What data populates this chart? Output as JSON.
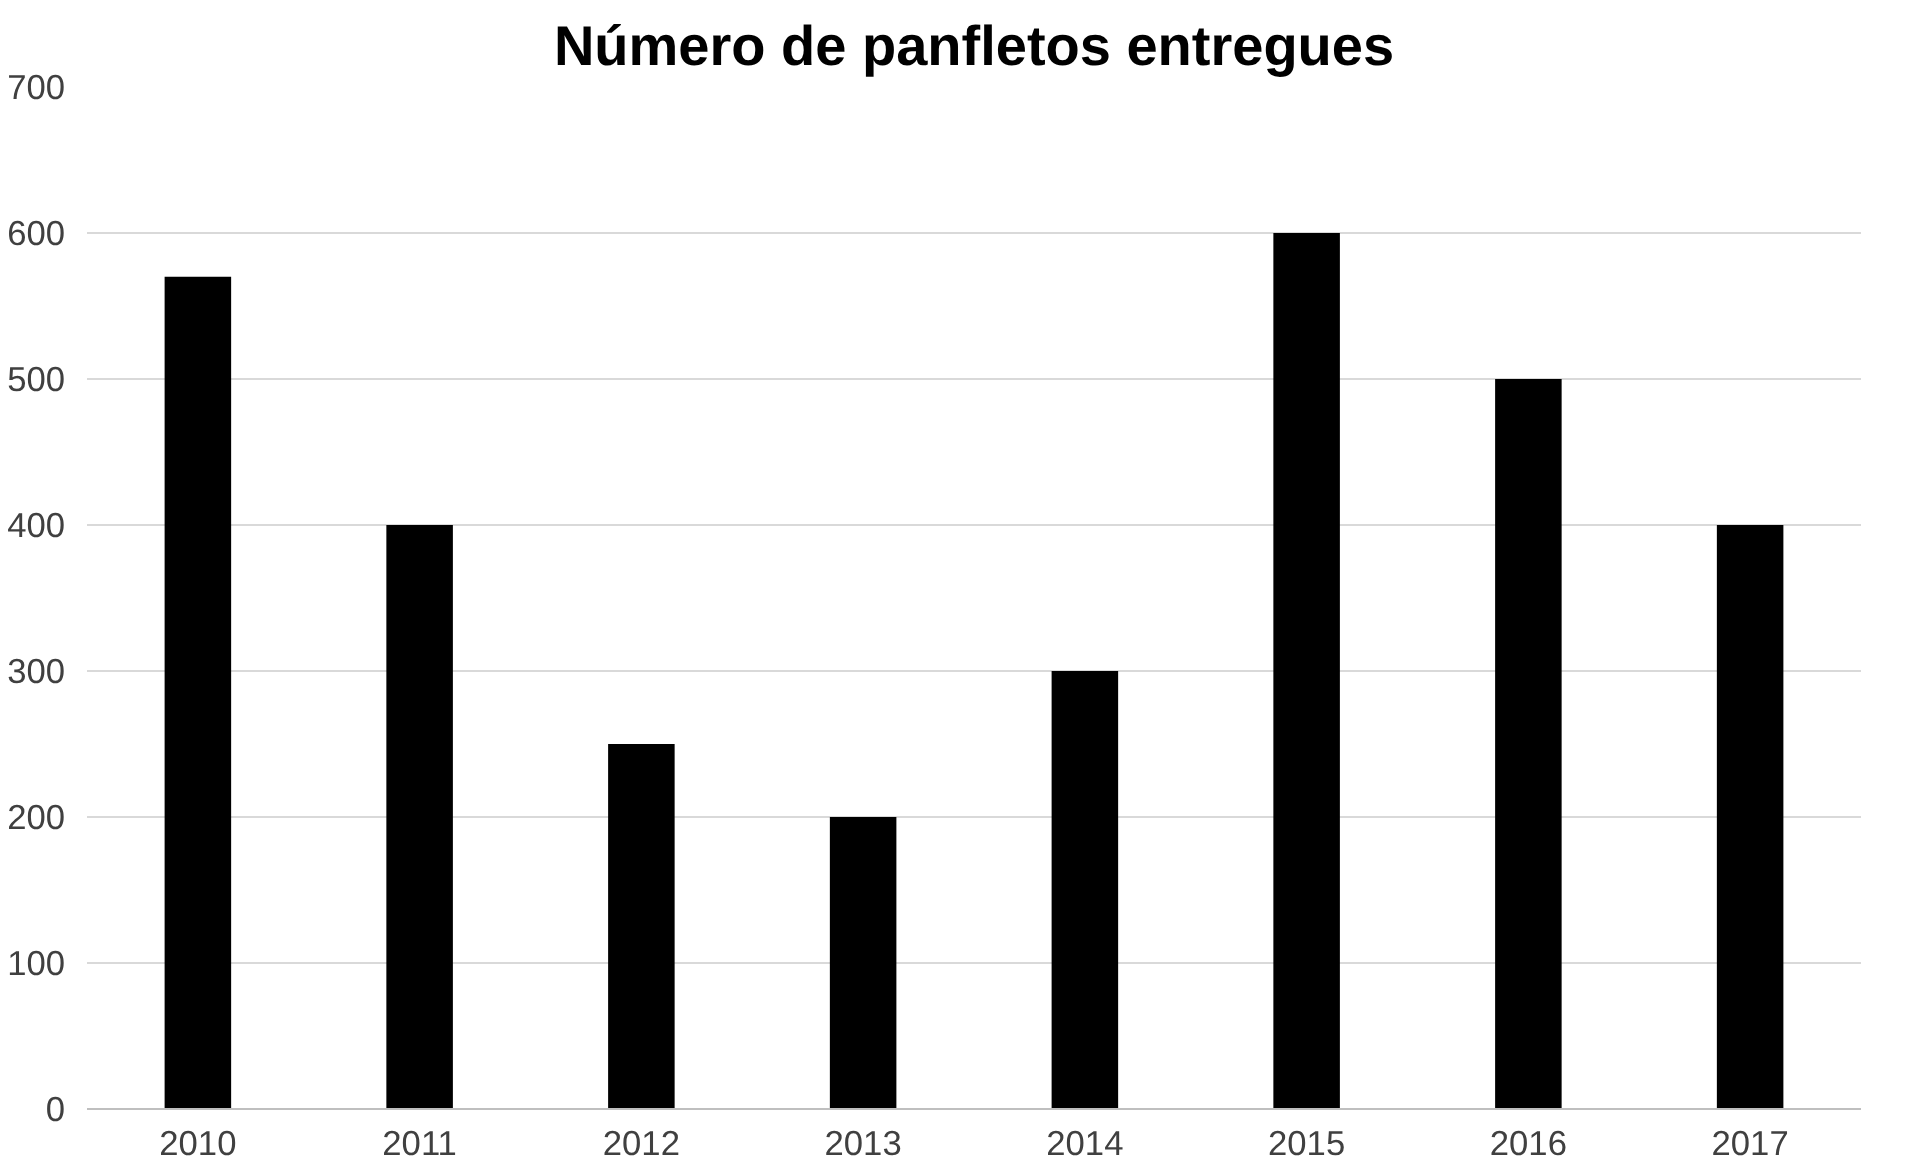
{
  "chart_data": {
    "type": "bar",
    "title": "Número de panfletos entregues",
    "categories": [
      "2010",
      "2011",
      "2012",
      "2013",
      "2014",
      "2015",
      "2016",
      "2017"
    ],
    "values": [
      570,
      400,
      250,
      200,
      300,
      600,
      500,
      400
    ],
    "color": "#000000",
    "ylim": [
      0,
      700
    ],
    "yticks": [
      0,
      100,
      200,
      300,
      400,
      500,
      600,
      700
    ],
    "grid": "y"
  }
}
